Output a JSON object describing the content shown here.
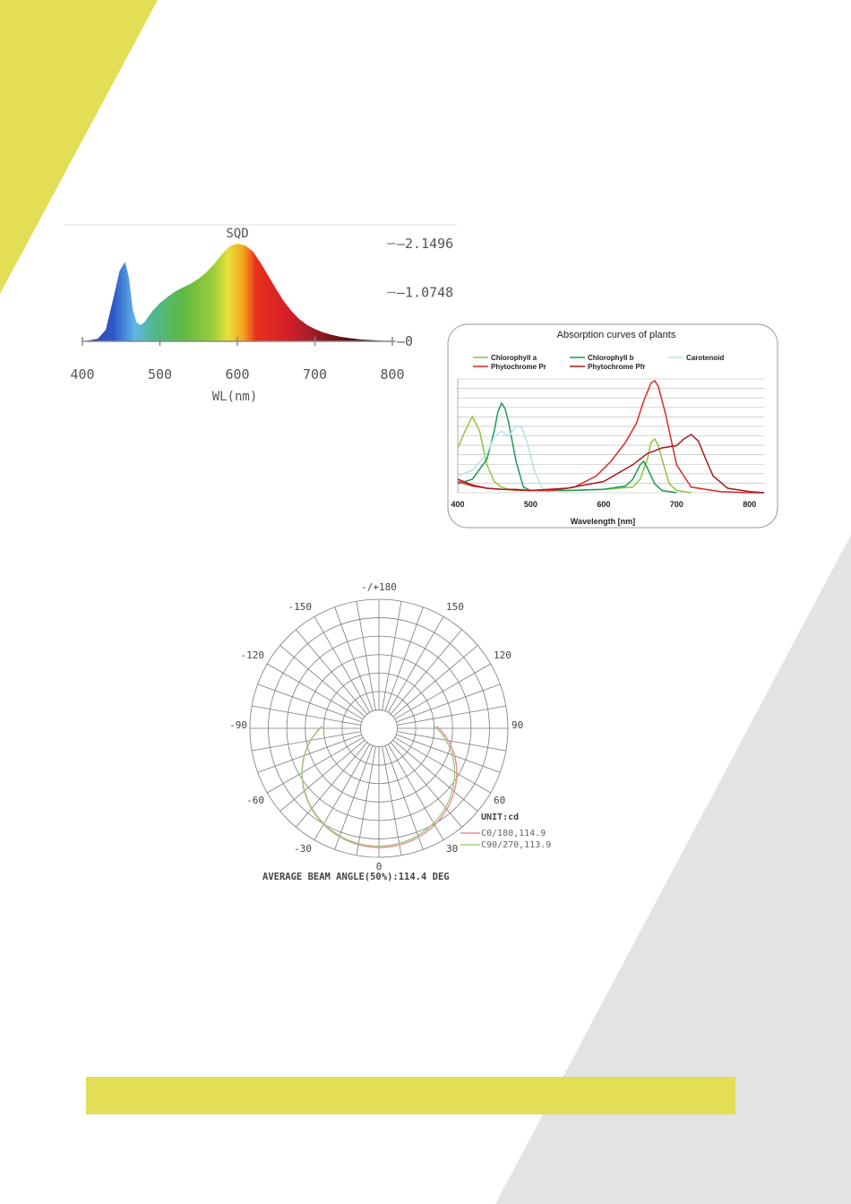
{
  "colors": {
    "accent_yellow": "#e2de56",
    "decor_gray": "#e3e3e3",
    "chlorophyll_a": "#8cc63f",
    "chlorophyll_b": "#1f9a52",
    "carotenoid": "#b6e3ee",
    "phytochrome_pr": "#d92a2a",
    "phytochrome_pfr": "#a31d1d",
    "c0_series": "#e98a9b",
    "c90_series": "#9ccf7c"
  },
  "chart_data": [
    {
      "type": "area",
      "title": "SQD",
      "xlabel": "WL(nm)",
      "x_ticks": [
        "400",
        "500",
        "600",
        "700",
        "800"
      ],
      "xlim": [
        400,
        800
      ],
      "right_ticks": [
        "2.1496",
        "1.0748",
        "0"
      ],
      "ylim": [
        0,
        2.1496
      ],
      "x": [
        405,
        420,
        430,
        440,
        448,
        455,
        460,
        465,
        470,
        475,
        480,
        490,
        500,
        510,
        520,
        530,
        540,
        550,
        560,
        570,
        580,
        590,
        600,
        610,
        620,
        630,
        640,
        650,
        660,
        670,
        680,
        690,
        700,
        710,
        720,
        730,
        740,
        750,
        760,
        770,
        780,
        790,
        800
      ],
      "values": [
        0.01,
        0.06,
        0.25,
        0.95,
        1.55,
        1.75,
        1.4,
        0.7,
        0.42,
        0.36,
        0.42,
        0.66,
        0.84,
        0.98,
        1.1,
        1.19,
        1.27,
        1.38,
        1.52,
        1.7,
        1.92,
        2.09,
        2.15,
        2.11,
        1.98,
        1.73,
        1.44,
        1.15,
        0.88,
        0.66,
        0.49,
        0.36,
        0.27,
        0.2,
        0.15,
        0.11,
        0.08,
        0.06,
        0.04,
        0.03,
        0.02,
        0.01,
        0.0
      ]
    },
    {
      "type": "line",
      "title": "Absorption curves of plants",
      "xlabel": "Wavelength [nm]",
      "x_ticks": [
        "400",
        "500",
        "600",
        "700",
        "800"
      ],
      "xlim": [
        400,
        820
      ],
      "ylim": [
        0,
        1
      ],
      "legend": [
        "Chlorophyll a",
        "Chlorophyll b",
        "Carotenoid",
        "Phytochrome Pr",
        "Phytochrome Pfr"
      ],
      "series": [
        {
          "name": "Chlorophyll a",
          "x": [
            400,
            410,
            420,
            430,
            440,
            450,
            460,
            470,
            480,
            500,
            550,
            600,
            640,
            650,
            660,
            665,
            670,
            675,
            680,
            690,
            700,
            720
          ],
          "values": [
            0.4,
            0.55,
            0.68,
            0.55,
            0.25,
            0.1,
            0.05,
            0.03,
            0.02,
            0.02,
            0.02,
            0.03,
            0.05,
            0.12,
            0.3,
            0.45,
            0.48,
            0.42,
            0.3,
            0.08,
            0.02,
            0.0
          ]
        },
        {
          "name": "Chlorophyll b",
          "x": [
            400,
            420,
            440,
            450,
            455,
            460,
            465,
            470,
            480,
            490,
            500,
            550,
            600,
            630,
            640,
            650,
            655,
            660,
            670,
            680,
            700
          ],
          "values": [
            0.08,
            0.12,
            0.3,
            0.55,
            0.72,
            0.8,
            0.75,
            0.62,
            0.28,
            0.05,
            0.02,
            0.02,
            0.03,
            0.06,
            0.12,
            0.25,
            0.28,
            0.22,
            0.08,
            0.02,
            0.0
          ]
        },
        {
          "name": "Carotenoid",
          "x": [
            400,
            420,
            440,
            450,
            460,
            470,
            480,
            488,
            495,
            505,
            515,
            525
          ],
          "values": [
            0.15,
            0.2,
            0.35,
            0.5,
            0.55,
            0.5,
            0.6,
            0.58,
            0.45,
            0.2,
            0.05,
            0.0
          ]
        },
        {
          "name": "Phytochrome Pr",
          "x": [
            400,
            420,
            440,
            460,
            480,
            500,
            530,
            560,
            590,
            610,
            630,
            645,
            655,
            665,
            670,
            675,
            685,
            700,
            720,
            760,
            800,
            820
          ],
          "values": [
            0.1,
            0.06,
            0.04,
            0.03,
            0.03,
            0.02,
            0.02,
            0.05,
            0.15,
            0.28,
            0.45,
            0.62,
            0.82,
            0.98,
            1.0,
            0.95,
            0.7,
            0.25,
            0.05,
            0.01,
            0.0,
            0.0
          ]
        },
        {
          "name": "Phytochrome Pfr",
          "x": [
            400,
            420,
            440,
            460,
            500,
            550,
            600,
            640,
            660,
            680,
            700,
            710,
            720,
            730,
            740,
            750,
            770,
            800,
            820
          ],
          "values": [
            0.12,
            0.07,
            0.04,
            0.03,
            0.02,
            0.04,
            0.1,
            0.25,
            0.35,
            0.4,
            0.42,
            0.48,
            0.52,
            0.46,
            0.3,
            0.15,
            0.04,
            0.01,
            0.0
          ]
        }
      ]
    },
    {
      "type": "polar",
      "angle_labels": [
        "-/+180",
        "-150",
        "150",
        "-120",
        "120",
        "-90",
        "90",
        "-60",
        "60",
        "-30",
        "30",
        "0"
      ],
      "unit_label": "UNIT:cd",
      "beam_angle_text": "AVERAGE BEAM ANGLE(50%):114.4 DEG",
      "series": [
        {
          "name": "C0/180,114.9",
          "beam_angle": 114.9
        },
        {
          "name": "C90/270,113.9",
          "beam_angle": 113.9
        }
      ]
    }
  ]
}
